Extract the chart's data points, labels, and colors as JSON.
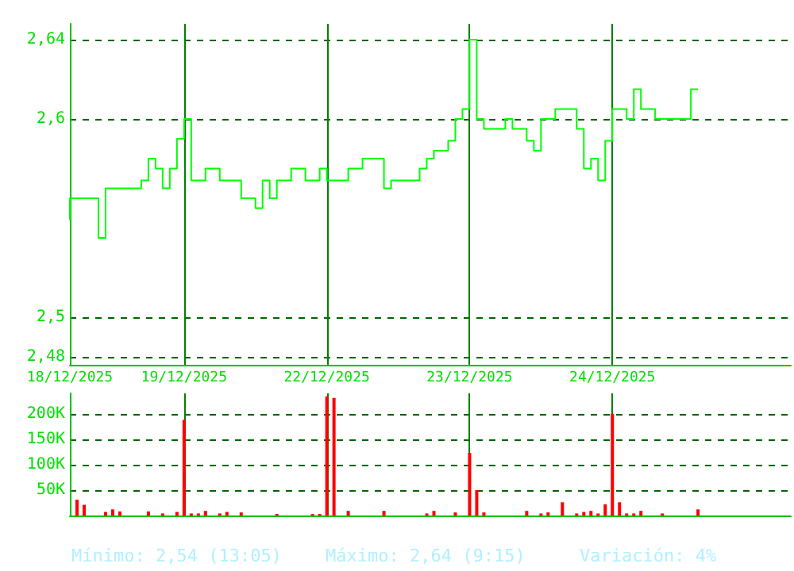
{
  "chart_data": [
    {
      "type": "step",
      "categories": [
        "18/12/2025",
        null,
        null,
        null,
        null,
        null,
        null,
        null,
        null,
        null,
        null,
        null,
        null,
        null,
        null,
        null,
        "19/12/2025",
        null,
        null,
        null,
        null,
        null,
        null,
        null,
        null,
        null,
        null,
        null,
        null,
        null,
        null,
        null,
        null,
        null,
        null,
        null,
        "22/12/2025",
        null,
        null,
        null,
        null,
        null,
        null,
        null,
        null,
        null,
        null,
        null,
        null,
        null,
        null,
        null,
        null,
        null,
        null,
        null,
        "23/12/2025",
        null,
        null,
        null,
        null,
        null,
        null,
        null,
        null,
        null,
        null,
        null,
        null,
        null,
        null,
        null,
        null,
        null,
        null,
        null,
        "24/12/2025",
        null,
        null,
        null,
        null,
        null,
        null,
        null,
        null,
        null,
        null,
        null,
        null,
        null,
        null,
        null,
        null,
        null,
        null,
        null,
        null,
        null,
        null,
        null,
        null,
        null
      ],
      "ylim": [
        2.476,
        2.648
      ],
      "yticks": [
        {
          "value": 2.48,
          "label": "2,48"
        },
        {
          "value": 2.5,
          "label": "2,5"
        },
        {
          "value": 2.6,
          "label": "2,6"
        },
        {
          "value": 2.64,
          "label": "2,64"
        }
      ],
      "grid": true,
      "series": [
        {
          "color": "#00ff00",
          "values": [
            2.549,
            2.56,
            2.56,
            2.56,
            2.56,
            2.54,
            2.565,
            2.565,
            2.565,
            2.565,
            2.565,
            2.569,
            2.58,
            2.575,
            2.565,
            2.575,
            2.59,
            2.6,
            2.569,
            2.569,
            2.575,
            2.575,
            2.569,
            2.569,
            2.569,
            2.56,
            2.56,
            2.555,
            2.569,
            2.56,
            2.569,
            2.569,
            2.575,
            2.575,
            2.569,
            2.569,
            2.575,
            2.569,
            2.569,
            2.569,
            2.575,
            2.575,
            2.58,
            2.58,
            2.58,
            2.565,
            2.569,
            2.569,
            2.569,
            2.569,
            2.575,
            2.58,
            2.584,
            2.584,
            2.589,
            2.6,
            2.605,
            2.64,
            2.6,
            2.595,
            2.595,
            2.595,
            2.6,
            2.595,
            2.595,
            2.589,
            2.584,
            2.6,
            2.6,
            2.605,
            2.605,
            2.605,
            2.595,
            2.575,
            2.58,
            2.569,
            2.589,
            2.605,
            2.605,
            2.6,
            2.615,
            2.605,
            2.605,
            2.6,
            2.6,
            2.6,
            2.6,
            2.6,
            2.615,
            null,
            null,
            null,
            null,
            null,
            null,
            null,
            null,
            null,
            null,
            null,
            null,
            null
          ]
        }
      ]
    },
    {
      "type": "bar",
      "categories": [
        null,
        null,
        null,
        null,
        null,
        null,
        null,
        null,
        null,
        null,
        null,
        null,
        null,
        null,
        null,
        null,
        null,
        null,
        null,
        null,
        null,
        null,
        null,
        null,
        null,
        null,
        null,
        null,
        null,
        null,
        null,
        null,
        null,
        null,
        null,
        null,
        null,
        null,
        null,
        null,
        null,
        null,
        null,
        null,
        null,
        null,
        null,
        null,
        null,
        null,
        null,
        null,
        null,
        null,
        null,
        null,
        null,
        null,
        null,
        null,
        null,
        null,
        null,
        null,
        null,
        null,
        null,
        null,
        null,
        null,
        null,
        null,
        null,
        null,
        null,
        null,
        null,
        null,
        null,
        null,
        null,
        null,
        null,
        null,
        null,
        null,
        null,
        null,
        null,
        null,
        null,
        null,
        null,
        null,
        null,
        null,
        null,
        null,
        null,
        null,
        null,
        null
      ],
      "ylim": [
        0,
        240000
      ],
      "yticks": [
        {
          "value": 50000,
          "label": "50K"
        },
        {
          "value": 100000,
          "label": "100K"
        },
        {
          "value": 150000,
          "label": "150K"
        },
        {
          "value": 200000,
          "label": "200K"
        }
      ],
      "grid": true,
      "tick_labels": "y",
      "annotations": [
        "Mínimo: 2,54 (13:05)",
        "Máximo: 2,64 (9:15)",
        "Variación: 4%"
      ],
      "series": [
        {
          "color": "#ff0000",
          "values": [
            null,
            31000,
            21000,
            null,
            null,
            7000,
            12000,
            8000,
            null,
            null,
            null,
            8000,
            null,
            4000,
            null,
            7000,
            188000,
            4000,
            4000,
            9000,
            null,
            4000,
            7000,
            null,
            6000,
            null,
            null,
            null,
            null,
            3000,
            null,
            null,
            null,
            null,
            3000,
            3000,
            234000,
            231000,
            null,
            9000,
            null,
            null,
            null,
            null,
            9000,
            null,
            null,
            null,
            null,
            null,
            4000,
            9000,
            null,
            null,
            6000,
            null,
            123000,
            50000,
            6000,
            null,
            null,
            null,
            null,
            null,
            9000,
            null,
            4000,
            6000,
            null,
            26000,
            null,
            4000,
            7000,
            9000,
            4000,
            22000,
            200000,
            26000,
            4000,
            4000,
            9000,
            null,
            null,
            4000,
            null,
            null,
            null,
            null,
            12000,
            null,
            null,
            null,
            null,
            null,
            null,
            null,
            null,
            null,
            null,
            null,
            null,
            null
          ]
        }
      ]
    }
  ]
}
